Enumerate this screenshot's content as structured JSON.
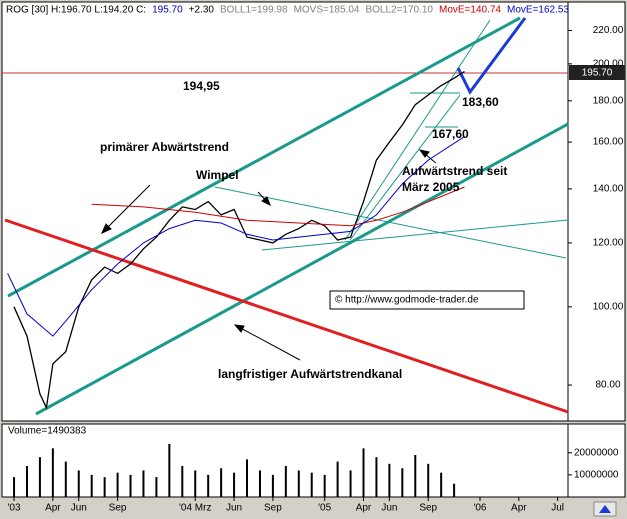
{
  "chart_data": {
    "type": "line",
    "header": [
      {
        "text": "ROG [30] H:196.70 L:194.20 C:",
        "color": "#000000"
      },
      {
        "text": "195.70",
        "color": "#0000cc"
      },
      {
        "text": "+2.30",
        "color": "#000000"
      },
      {
        "text": "BOLL1=199.98",
        "color": "#808080"
      },
      {
        "text": "MOVS=185.04",
        "color": "#808080"
      },
      {
        "text": "BOLL2=170.10",
        "color": "#808080"
      },
      {
        "text": "MovE=140.74",
        "color": "#cc0000"
      },
      {
        "text": "MovE=162.53",
        "color": "#0000cc"
      }
    ],
    "price_label": "195.70",
    "x": [
      0,
      1,
      2,
      2.5,
      3,
      4,
      5,
      6,
      7,
      8,
      9,
      10,
      11,
      12,
      13,
      14,
      15,
      16,
      17,
      18,
      19,
      20,
      21,
      22,
      23,
      24,
      25,
      26,
      27,
      28,
      29,
      30,
      31,
      32,
      33,
      34,
      34.8
    ],
    "series": [
      {
        "color": "#000000",
        "values": [
          100,
          92,
          78,
          75,
          85,
          88,
          100,
          108,
          112,
          110,
          113,
          118,
          122,
          128,
          133,
          132,
          135,
          130,
          132,
          122,
          121,
          120,
          123,
          125,
          128,
          126,
          121,
          122,
          135,
          152,
          160,
          168,
          178,
          183,
          188,
          192,
          195.7
        ]
      },
      {
        "name": "MovE",
        "color": "#cc0000",
        "x": [
          6,
          10,
          14,
          18,
          22,
          26,
          28,
          30,
          33,
          34.8
        ],
        "values": [
          134,
          133,
          131,
          128,
          127,
          126,
          128,
          131,
          137,
          140.74
        ]
      },
      {
        "name": "MovE",
        "color": "#0000cc",
        "x": [
          -0.5,
          1,
          3,
          4,
          6,
          8,
          10,
          12,
          14,
          16,
          18,
          20,
          22,
          24,
          26,
          28,
          30,
          32,
          34.8
        ],
        "values": [
          110,
          98,
          92,
          96,
          105,
          113,
          120,
          125,
          128,
          127,
          123,
          121,
          122,
          123,
          124,
          130,
          142,
          152,
          162.53
        ]
      }
    ],
    "xlim": [
      -0.93,
      42.8
    ],
    "xticks": [
      {
        "value": 0,
        "label": "'03"
      },
      {
        "value": 3,
        "label": "Apr"
      },
      {
        "value": 5,
        "label": "Jun"
      },
      {
        "value": 8,
        "label": "Sep"
      },
      {
        "value": 14,
        "label": "'04 Mrz"
      },
      {
        "value": 17,
        "label": "Jun"
      },
      {
        "value": 20,
        "label": "Sep"
      },
      {
        "value": 24,
        "label": "'05"
      },
      {
        "value": 27,
        "label": "Apr"
      },
      {
        "value": 29,
        "label": "Jun"
      },
      {
        "value": 32,
        "label": "Sep"
      },
      {
        "value": 36,
        "label": "'06"
      },
      {
        "value": 39,
        "label": "Apr"
      },
      {
        "value": 42,
        "label": "Jul"
      }
    ],
    "ylim": [
      72.2,
      238.6
    ],
    "log_scale": true,
    "yticks": [
      {
        "value": 80,
        "label": "80.00"
      },
      {
        "value": 100,
        "label": "100.00"
      },
      {
        "value": 120,
        "label": "120.00"
      },
      {
        "value": 140,
        "label": "140.00"
      },
      {
        "value": 160,
        "label": "160.00"
      },
      {
        "value": 180,
        "label": "180.00"
      },
      {
        "value": 200,
        "label": "200.00"
      },
      {
        "value": 220,
        "label": "220.00"
      }
    ],
    "annotations": [
      "194,95",
      "183,60",
      "167,60",
      "primärer Abwärtstrend",
      "Wimpel",
      "Aufwärtstrend seit",
      "März 2005",
      "© http://www.godmode-trader.de",
      "langfristiger Aufwärtstrendkanal"
    ],
    "volume": {
      "title": "Volume=1490383",
      "color": "#000000",
      "x": [
        0,
        1,
        2,
        3,
        4,
        5,
        6,
        7,
        8,
        9,
        10,
        11,
        12,
        13,
        14,
        15,
        16,
        17,
        18,
        19,
        20,
        21,
        22,
        23,
        24,
        25,
        26,
        27,
        28,
        29,
        30,
        31,
        32,
        33,
        34
      ],
      "values": [
        9000000,
        14000000,
        18000000,
        22000000,
        16000000,
        12000000,
        10000000,
        9000000,
        11000000,
        10000000,
        12000000,
        9000000,
        24000000,
        14000000,
        12000000,
        10000000,
        13000000,
        11000000,
        17000000,
        12000000,
        10000000,
        14000000,
        12000000,
        11000000,
        10000000,
        16000000,
        12000000,
        22000000,
        18000000,
        15000000,
        13000000,
        19000000,
        15000000,
        11000000,
        6000000
      ],
      "ylim": [
        0,
        33000000
      ],
      "yticks": [
        10000000,
        20000000
      ]
    }
  }
}
